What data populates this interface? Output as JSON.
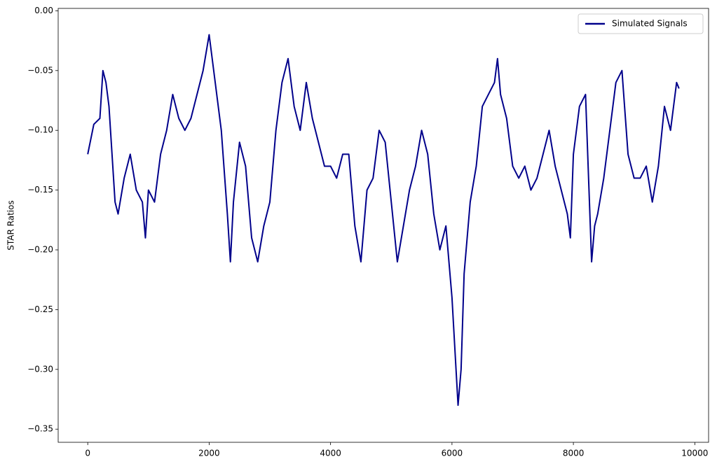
{
  "chart_data": {
    "type": "line",
    "ylabel": "STAR Ratios",
    "x": [
      0,
      100,
      200,
      250,
      300,
      350,
      400,
      450,
      500,
      600,
      700,
      800,
      900,
      950,
      1000,
      1100,
      1200,
      1300,
      1400,
      1500,
      1600,
      1700,
      1800,
      1900,
      2000,
      2100,
      2200,
      2300,
      2350,
      2400,
      2500,
      2600,
      2700,
      2800,
      2900,
      3000,
      3100,
      3200,
      3300,
      3400,
      3500,
      3600,
      3700,
      3800,
      3900,
      4000,
      4100,
      4200,
      4300,
      4400,
      4500,
      4600,
      4700,
      4800,
      4900,
      5000,
      5100,
      5200,
      5300,
      5400,
      5500,
      5600,
      5700,
      5800,
      5900,
      6000,
      6100,
      6150,
      6200,
      6300,
      6400,
      6500,
      6600,
      6700,
      6750,
      6800,
      6900,
      7000,
      7100,
      7200,
      7300,
      7400,
      7500,
      7600,
      7700,
      7800,
      7900,
      7950,
      8000,
      8100,
      8200,
      8300,
      8350,
      8400,
      8500,
      8600,
      8700,
      8800,
      8900,
      9000,
      9100,
      9200,
      9300,
      9400,
      9500,
      9600,
      9700,
      9740
    ],
    "series": [
      {
        "name": "Simulated Signals",
        "color": "#00008b",
        "values": [
          -0.12,
          -0.095,
          -0.09,
          -0.05,
          -0.06,
          -0.08,
          -0.12,
          -0.16,
          -0.17,
          -0.14,
          -0.12,
          -0.15,
          -0.16,
          -0.19,
          -0.15,
          -0.16,
          -0.12,
          -0.1,
          -0.07,
          -0.09,
          -0.1,
          -0.09,
          -0.07,
          -0.05,
          -0.02,
          -0.06,
          -0.1,
          -0.17,
          -0.21,
          -0.16,
          -0.11,
          -0.13,
          -0.19,
          -0.21,
          -0.18,
          -0.16,
          -0.1,
          -0.06,
          -0.04,
          -0.08,
          -0.1,
          -0.06,
          -0.09,
          -0.11,
          -0.13,
          -0.13,
          -0.14,
          -0.12,
          -0.12,
          -0.18,
          -0.21,
          -0.15,
          -0.14,
          -0.1,
          -0.11,
          -0.16,
          -0.21,
          -0.18,
          -0.15,
          -0.13,
          -0.1,
          -0.12,
          -0.17,
          -0.2,
          -0.18,
          -0.24,
          -0.33,
          -0.3,
          -0.22,
          -0.16,
          -0.13,
          -0.08,
          -0.07,
          -0.06,
          -0.04,
          -0.07,
          -0.09,
          -0.13,
          -0.14,
          -0.13,
          -0.15,
          -0.14,
          -0.12,
          -0.1,
          -0.13,
          -0.15,
          -0.17,
          -0.19,
          -0.12,
          -0.08,
          -0.07,
          -0.21,
          -0.18,
          -0.17,
          -0.14,
          -0.1,
          -0.06,
          -0.05,
          -0.12,
          -0.14,
          -0.14,
          -0.13,
          -0.16,
          -0.13,
          -0.08,
          -0.1,
          -0.06,
          -0.065
        ]
      }
    ],
    "xlim": [
      -487,
      10227
    ],
    "ylim": [
      -0.361,
      0.002
    ],
    "xticks": [
      0,
      2000,
      4000,
      6000,
      8000,
      10000
    ],
    "yticks": [
      {
        "value": 0,
        "label": "0.00"
      },
      {
        "value": -0.05,
        "label": "−0.05"
      },
      {
        "value": -0.1,
        "label": "−0.10"
      },
      {
        "value": -0.15,
        "label": "−0.15"
      },
      {
        "value": -0.2,
        "label": "−0.20"
      },
      {
        "value": -0.25,
        "label": "−0.25"
      },
      {
        "value": -0.3,
        "label": "−0.30"
      },
      {
        "value": -0.35,
        "label": "−0.35"
      }
    ],
    "legend": "upper right"
  }
}
